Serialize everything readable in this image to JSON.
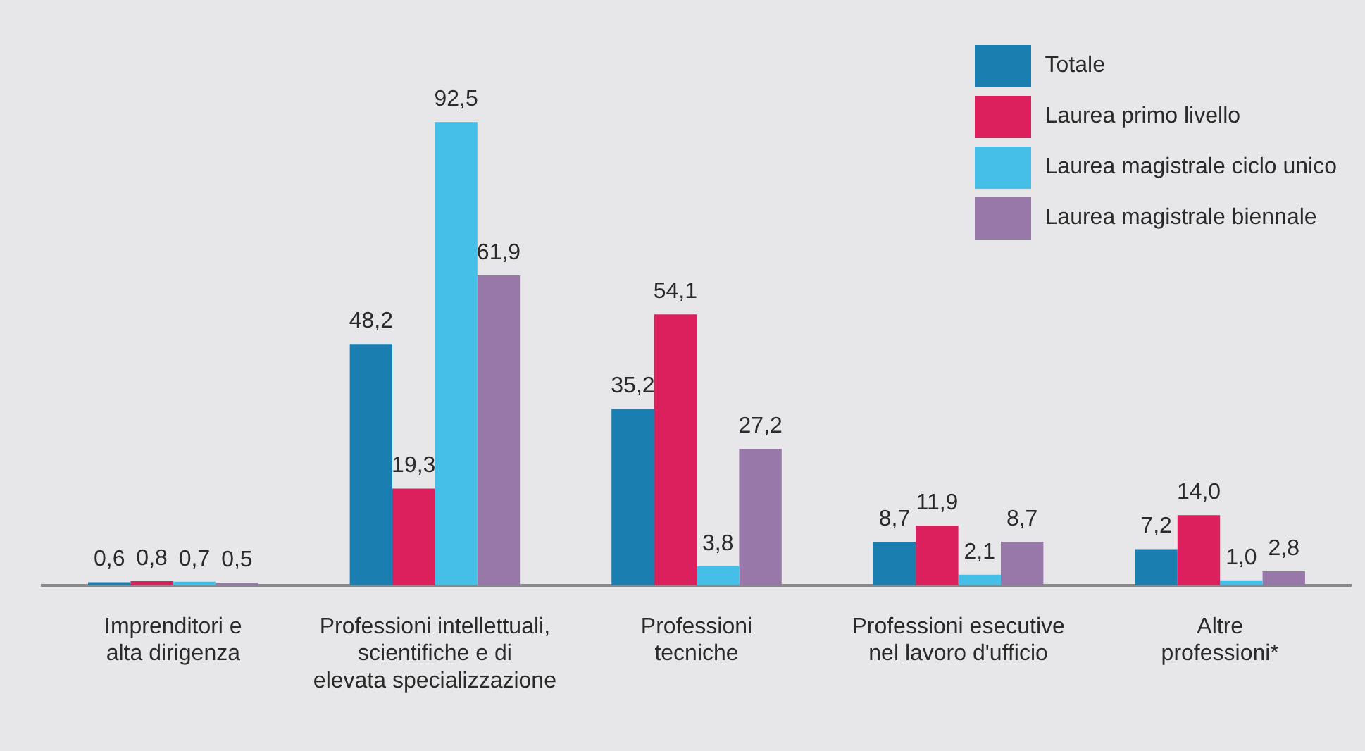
{
  "chart_data": {
    "type": "bar",
    "categories": [
      "Imprenditori e\nalta dirigenza",
      "Professioni intellettuali,\nscientifiche e di\nelevata specializzazione",
      "Professioni\ntecniche",
      "Professioni esecutive\nnel lavoro d'ufficio",
      "Altre\nprofessioni*"
    ],
    "series": [
      {
        "name": "Totale",
        "color": "#1a7fb0",
        "values": [
          0.6,
          48.2,
          35.2,
          8.7,
          7.2
        ],
        "value_labels": [
          "0,6",
          "48,2",
          "35,2",
          "8,7",
          "7,2"
        ]
      },
      {
        "name": "Laurea primo livello",
        "color": "#dc1f5d",
        "values": [
          0.8,
          19.3,
          54.1,
          11.9,
          14.0
        ],
        "value_labels": [
          "0,8",
          "19,3",
          "54,1",
          "11,9",
          "14,0"
        ]
      },
      {
        "name": "Laurea magistrale ciclo unico",
        "color": "#45bfe8",
        "values": [
          0.7,
          92.5,
          3.8,
          2.1,
          1.0
        ],
        "value_labels": [
          "0,7",
          "92,5",
          "3,8",
          "2,1",
          "1,0"
        ]
      },
      {
        "name": "Laurea magistrale biennale",
        "color": "#9778a9",
        "values": [
          0.5,
          61.9,
          27.2,
          8.7,
          2.8
        ],
        "value_labels": [
          "0,5",
          "61,9",
          "27,2",
          "8,7",
          "2,8"
        ]
      }
    ],
    "legend": "top right",
    "grid": false
  }
}
